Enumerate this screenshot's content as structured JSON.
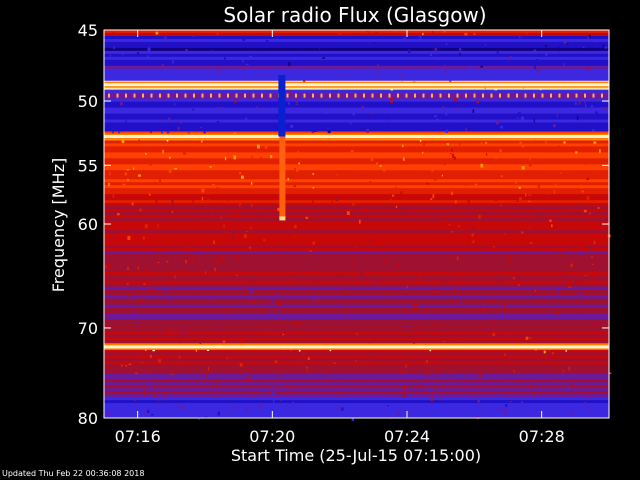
{
  "chart_data": {
    "type": "heatmap",
    "title": "Solar radio Flux (Glasgow)",
    "xlabel": "Start Time (25-Jul-15 07:15:00)",
    "ylabel": "Frequency [MHz]",
    "x_ticks": [
      "07:16",
      "07:20",
      "07:24",
      "07:28"
    ],
    "x_tick_minutes_after_start": [
      1,
      5,
      9,
      13
    ],
    "x_range_minutes_after_start": [
      0,
      15
    ],
    "y_ticks": [
      45,
      50,
      55,
      60,
      70,
      80
    ],
    "y_range_mhz": [
      45,
      80
    ],
    "y_scale": "log",
    "colormap": [
      "#140080",
      "#2010c8",
      "#3c28e0",
      "#6a1a9a",
      "#a01030",
      "#c80808",
      "#e02000",
      "#ff4000",
      "#ffa000",
      "#ffe8a0"
    ],
    "features": {
      "bright_lines_mhz": [
        48.8,
        52.7,
        72.0
      ],
      "burst_time_minutes_after_start": 5.3,
      "burst_freq_range_mhz": [
        52.7,
        59.5
      ]
    }
  },
  "footer": {
    "updated": "Updated Thu Feb 22 00:36:08 2018"
  }
}
